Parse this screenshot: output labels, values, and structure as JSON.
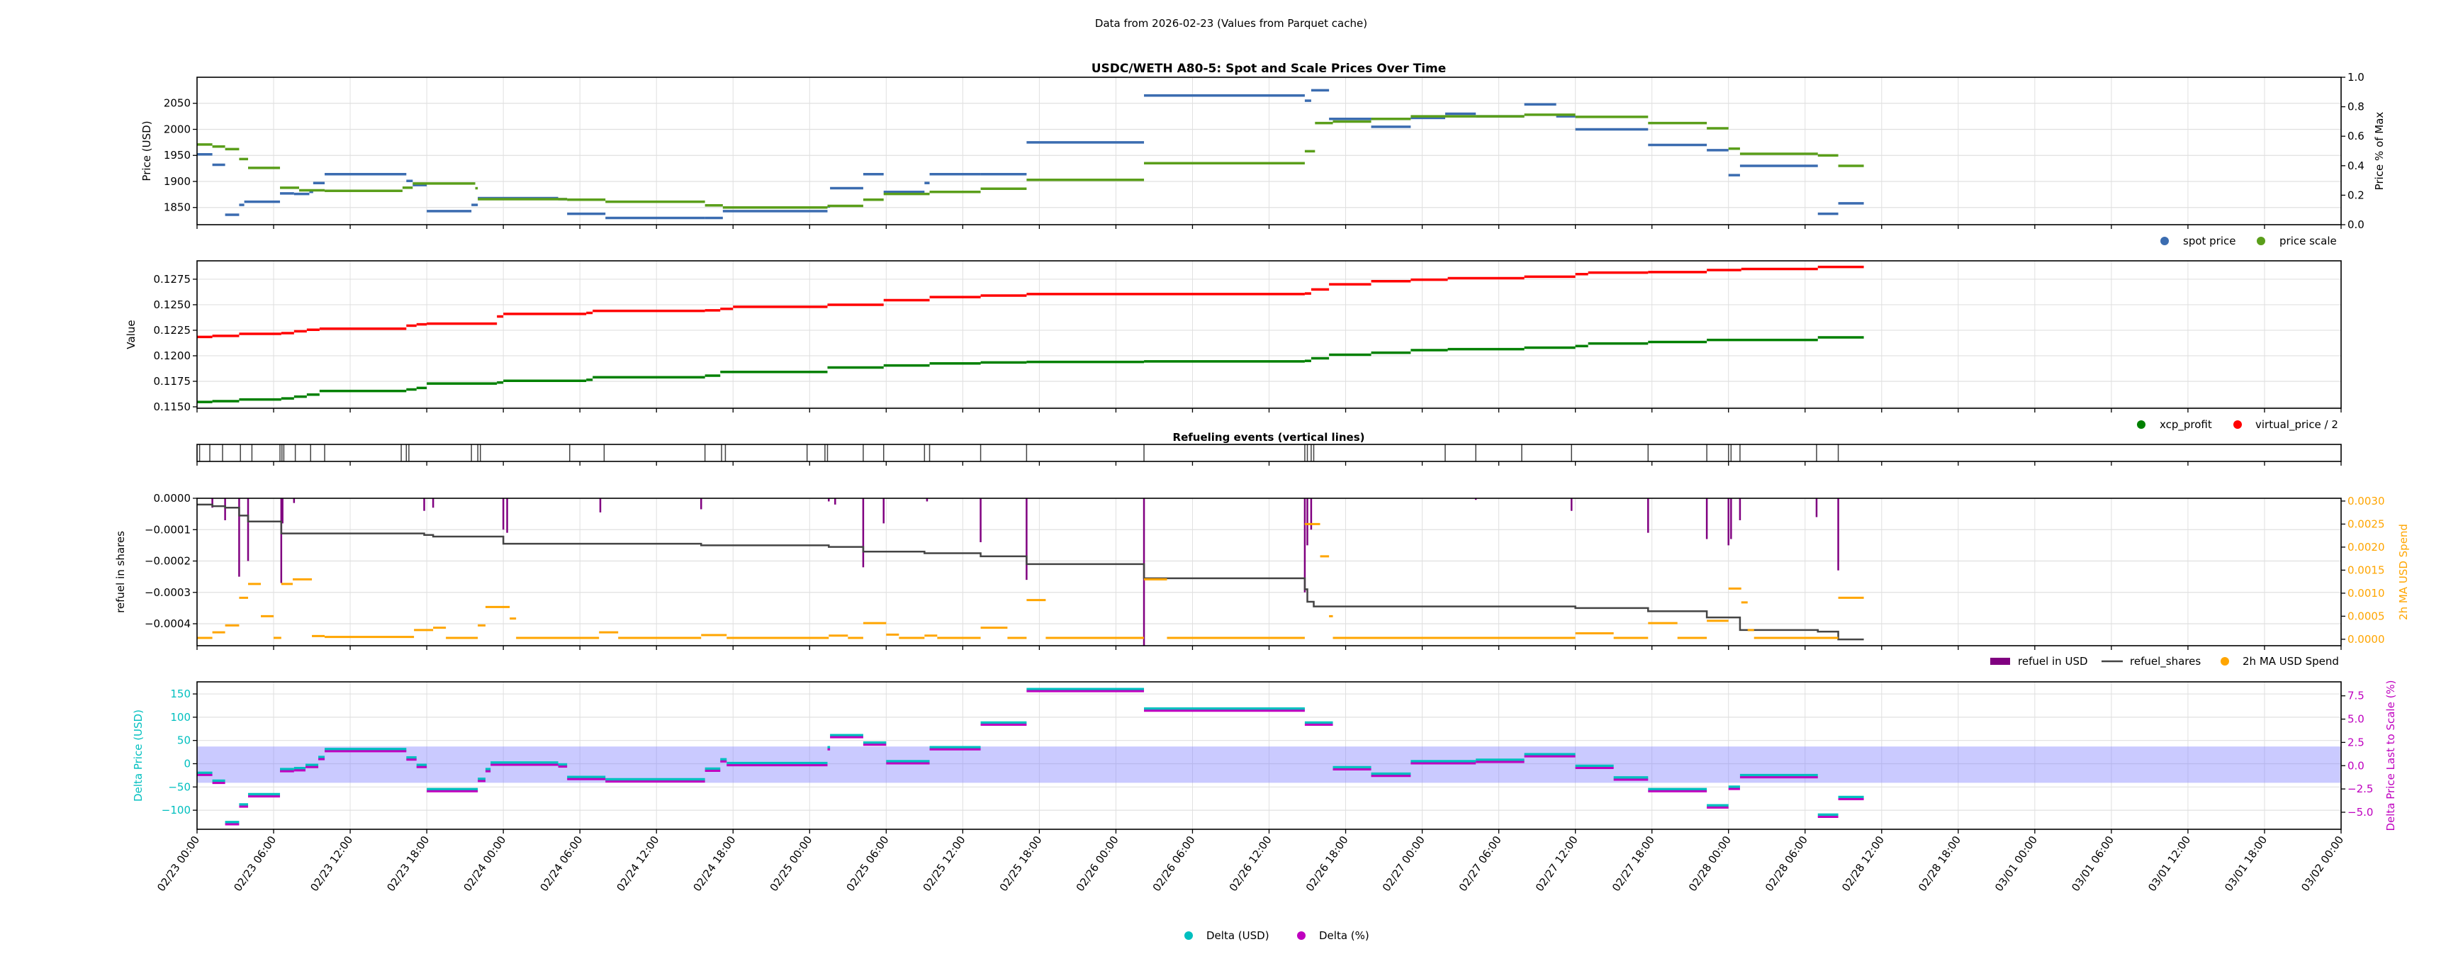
{
  "suptitle": "Data from 2026-02-23 (Values from Parquet cache)",
  "x_axis": {
    "unit": "hours since 02/23 00:00",
    "range_hours": [
      0,
      168
    ],
    "tick_hours": [
      0,
      6,
      12,
      18,
      24,
      30,
      36,
      42,
      48,
      54,
      60,
      66,
      72,
      78,
      84,
      90,
      96,
      102,
      108,
      114,
      120,
      126,
      132,
      138,
      144,
      150,
      156,
      162,
      168
    ],
    "tick_labels": [
      "02/23 00:00",
      "02/23 06:00",
      "02/23 12:00",
      "02/23 18:00",
      "02/24 00:00",
      "02/24 06:00",
      "02/24 12:00",
      "02/24 18:00",
      "02/25 00:00",
      "02/25 06:00",
      "02/25 12:00",
      "02/25 18:00",
      "02/26 00:00",
      "02/26 06:00",
      "02/26 12:00",
      "02/26 18:00",
      "02/27 00:00",
      "02/27 06:00",
      "02/27 12:00",
      "02/27 18:00",
      "02/28 00:00",
      "02/28 06:00",
      "02/28 12:00",
      "02/28 18:00",
      "03/01 00:00",
      "03/01 06:00",
      "03/01 12:00",
      "03/01 18:00",
      "03/02 00:00"
    ]
  },
  "chart_data": [
    {
      "type": "line",
      "title": "USDC/WETH A80-5: Spot and Scale Prices Over Time",
      "ylabel": "Price (USD)",
      "ylabel_right": "Price % of Max",
      "ylim": [
        1817,
        2100
      ],
      "ylim_right": [
        0,
        1
      ],
      "yticks": [
        {
          "v": 1850,
          "label": "1850"
        },
        {
          "v": 1900,
          "label": "1900"
        },
        {
          "v": 1950,
          "label": "1950"
        },
        {
          "v": 2000,
          "label": "2000"
        },
        {
          "v": 2050,
          "label": "2050"
        }
      ],
      "yticks_right": [
        {
          "v": 0,
          "label": "0.0"
        },
        {
          "v": 0.2,
          "label": "0.2"
        },
        {
          "v": 0.4,
          "label": "0.4"
        },
        {
          "v": 0.6,
          "label": "0.6"
        },
        {
          "v": 0.8,
          "label": "0.8"
        },
        {
          "v": 1.0,
          "label": "1.0"
        }
      ],
      "legend": [
        {
          "label": "spot price",
          "color": "#3b6cb0"
        },
        {
          "label": "price scale",
          "color": "#5a9e1a"
        }
      ],
      "series": [
        {
          "name": "spot price",
          "color": "#3b6cb0",
          "end_hour": 130.6,
          "x": [
            0,
            1.2,
            2.2,
            3.3,
            3.7,
            6.5,
            7.6,
            8.8,
            9.1,
            10,
            16.4,
            16.9,
            18,
            21.5,
            22,
            28.3,
            29,
            32,
            39.8,
            41.2,
            49.4,
            49.6,
            52.2,
            53.8,
            57,
            57.4,
            61.4,
            65,
            74.2,
            86.8,
            87.3,
            88.7,
            92,
            95.1,
            97.8,
            100.2,
            104,
            106.5,
            108,
            113.7,
            118.3,
            120,
            120.9,
            127,
            128.6
          ],
          "y": [
            1952,
            1932,
            1836,
            1855,
            1861,
            1877,
            1876,
            1880,
            1897,
            1914,
            1901,
            1893,
            1843,
            1855,
            1868,
            1866,
            1838,
            1830,
            1830,
            1843,
            1852,
            1887,
            1914,
            1880,
            1897,
            1914,
            1914,
            1975,
            2065,
            2055,
            2075,
            2020,
            2005,
            2022,
            2030,
            2025,
            2048,
            2025,
            2000,
            1970,
            1960,
            1912,
            1930,
            1838,
            1858
          ]
        },
        {
          "name": "price scale",
          "color": "#5a9e1a",
          "end_hour": 130.6,
          "x": [
            0,
            1.2,
            2.2,
            3.3,
            4,
            6.5,
            8,
            10,
            16.1,
            16.9,
            21.8,
            22,
            29,
            32,
            39.8,
            41.2,
            49.4,
            52.2,
            53.8,
            57.4,
            61.4,
            65,
            74.2,
            86.8,
            87.6,
            89,
            92,
            95.1,
            100.2,
            104,
            108,
            113.7,
            118.3,
            120,
            120.9,
            127,
            128.6
          ],
          "y": [
            1971,
            1967,
            1962,
            1943,
            1926,
            1888,
            1883,
            1882,
            1888,
            1896,
            1887,
            1866,
            1865,
            1861,
            1854,
            1850,
            1853,
            1865,
            1876,
            1880,
            1886,
            1903,
            1935,
            1958,
            2012,
            2015,
            2020,
            2025,
            2025,
            2028,
            2024,
            2012,
            2002,
            1963,
            1953,
            1950,
            1930
          ]
        }
      ]
    },
    {
      "type": "line",
      "title": "",
      "ylabel": "Value",
      "ylim": [
        0.11486,
        0.1293
      ],
      "yticks": [
        {
          "v": 0.115,
          "label": "0.1150"
        },
        {
          "v": 0.1175,
          "label": "0.1175"
        },
        {
          "v": 0.12,
          "label": "0.1200"
        },
        {
          "v": 0.1225,
          "label": "0.1225"
        },
        {
          "v": 0.125,
          "label": "0.1250"
        },
        {
          "v": 0.1275,
          "label": "0.1275"
        }
      ],
      "legend": [
        {
          "label": "xcp_profit",
          "color": "#008000"
        },
        {
          "label": "virtual_price / 2",
          "color": "#ff0000"
        }
      ],
      "series": [
        {
          "name": "xcp_profit",
          "color": "#008000",
          "end_hour": 130.6,
          "x": [
            0,
            1.2,
            3.3,
            6.6,
            7.6,
            8.6,
            9.6,
            16.4,
            17.2,
            18,
            23.5,
            24,
            30.5,
            31,
            39.8,
            41,
            49.4,
            53.8,
            57.4,
            61.4,
            65,
            74.2,
            86.8,
            87.3,
            88.7,
            92,
            95.1,
            98,
            104,
            108,
            109,
            113.7,
            118.3,
            127
          ],
          "y": [
            0.11548,
            0.11555,
            0.11572,
            0.11582,
            0.116,
            0.1162,
            0.11655,
            0.1167,
            0.11685,
            0.11728,
            0.11738,
            0.11755,
            0.11765,
            0.1179,
            0.11805,
            0.11842,
            0.11885,
            0.11905,
            0.11925,
            0.11935,
            0.1194,
            0.11945,
            0.1195,
            0.11975,
            0.1201,
            0.1203,
            0.12055,
            0.12065,
            0.1208,
            0.12095,
            0.1212,
            0.12135,
            0.12155,
            0.1218
          ]
        },
        {
          "name": "virtual_price / 2",
          "color": "#ff0000",
          "end_hour": 130.6,
          "x": [
            0,
            1.2,
            3.3,
            6.6,
            7.6,
            8.6,
            9.6,
            16.4,
            17.2,
            18,
            23.5,
            24,
            30.5,
            31,
            39.8,
            41,
            42,
            49.4,
            53.8,
            57.4,
            61.4,
            65,
            86.8,
            87.3,
            88.7,
            92,
            95.1,
            98,
            104,
            108,
            109,
            113.7,
            118.3,
            121,
            127
          ],
          "y": [
            0.12185,
            0.12195,
            0.12215,
            0.12222,
            0.1224,
            0.12255,
            0.12265,
            0.12295,
            0.12308,
            0.12315,
            0.12385,
            0.1241,
            0.1242,
            0.1244,
            0.12445,
            0.1246,
            0.1248,
            0.125,
            0.12545,
            0.12575,
            0.1259,
            0.12605,
            0.1261,
            0.1265,
            0.127,
            0.1273,
            0.12745,
            0.1276,
            0.12775,
            0.128,
            0.12815,
            0.1282,
            0.1284,
            0.1285,
            0.1287
          ]
        }
      ]
    },
    {
      "type": "line",
      "title": "Refueling events (vertical lines)",
      "event_hours": [
        0.2,
        1,
        2,
        3.4,
        4.3,
        6.5,
        6.65,
        6.8,
        7.7,
        8.9,
        10,
        16,
        16.4,
        16.6,
        21.5,
        22,
        22.2,
        29.2,
        31.9,
        39.8,
        41.1,
        41.4,
        47.8,
        49.2,
        49.4,
        52.2,
        53.8,
        57,
        57.4,
        61.4,
        65,
        74.2,
        86.8,
        87,
        87.3,
        87.5,
        97.8,
        100.2,
        103.8,
        107.7,
        113.7,
        118.3,
        120,
        120.2,
        120.9,
        126.9,
        128.6
      ]
    },
    {
      "type": "bar",
      "title": "",
      "ylabel": "refuel in shares",
      "ylabel_right": "2h MA USD Spend",
      "ylim": [
        -0.00047,
        0.0
      ],
      "ylim_right": [
        -0.00014,
        0.00306
      ],
      "yticks": [
        {
          "v": -0.0004,
          "label": "−0.0004"
        },
        {
          "v": -0.0003,
          "label": "−0.0003"
        },
        {
          "v": -0.0002,
          "label": "−0.0002"
        },
        {
          "v": -0.0001,
          "label": "−0.0001"
        },
        {
          "v": 0.0,
          "label": "0.0000"
        }
      ],
      "yticks_right": [
        {
          "v": 0.0,
          "label": "0.0000"
        },
        {
          "v": 0.0005,
          "label": "0.0005"
        },
        {
          "v": 0.001,
          "label": "0.0010"
        },
        {
          "v": 0.0015,
          "label": "0.0015"
        },
        {
          "v": 0.002,
          "label": "0.0020"
        },
        {
          "v": 0.0025,
          "label": "0.0025"
        },
        {
          "v": 0.003,
          "label": "0.0030"
        }
      ],
      "legend": [
        {
          "label": "refuel in USD",
          "color": "#800080"
        },
        {
          "label": "refuel_shares",
          "color": "#444444"
        },
        {
          "label": "2h MA USD Spend",
          "color": "#ffa500"
        }
      ],
      "refuel_bars": {
        "name": "refuel in USD",
        "color": "#800080",
        "x": [
          1.2,
          2.2,
          3.3,
          4,
          6.6,
          6.7,
          7.6,
          17.8,
          18.5,
          24,
          24.3,
          31.6,
          39.5,
          49.5,
          50,
          52.2,
          53.8,
          57.2,
          61.4,
          65,
          74.2,
          86.8,
          87,
          87.3,
          100.2,
          107.7,
          113.7,
          118.3,
          120,
          120.2,
          120.9,
          126.9,
          128.6
        ],
        "y": [
          -3e-05,
          -7e-05,
          -0.00025,
          -0.0002,
          -0.00027,
          -8e-05,
          -1.5e-05,
          -4e-05,
          -3e-05,
          -0.0001,
          -0.00011,
          -4.5e-05,
          -3.5e-05,
          -1e-05,
          -2e-05,
          -0.00022,
          -8e-05,
          -1e-05,
          -0.00014,
          -0.00026,
          -0.00047,
          -0.0003,
          -0.00015,
          -0.0001,
          -5e-06,
          -4e-05,
          -0.00011,
          -0.00013,
          -0.00015,
          -0.00013,
          -7e-05,
          -6e-05,
          -0.00023
        ]
      },
      "refuel_shares": {
        "name": "refuel_shares",
        "color": "#444444",
        "end_hour": 130.6,
        "x": [
          0,
          1.2,
          2.2,
          3.3,
          4,
          6.6,
          17.8,
          18.5,
          24,
          39.5,
          49.5,
          52.2,
          57,
          61.4,
          65,
          74.2,
          86.8,
          87,
          87.5,
          108,
          113.7,
          118.3,
          120.9,
          127,
          128.6
        ],
        "y": [
          -2e-05,
          -2.5e-05,
          -3e-05,
          -5.5e-05,
          -7.4e-05,
          -0.000112,
          -0.000117,
          -0.000122,
          -0.000145,
          -0.00015,
          -0.000155,
          -0.00017,
          -0.000175,
          -0.000185,
          -0.00021,
          -0.000255,
          -0.00029,
          -0.00033,
          -0.000345,
          -0.00035,
          -0.00036,
          -0.00038,
          -0.00042,
          -0.000425,
          -0.00045
        ]
      },
      "ma_spend": {
        "name": "2h MA USD Spend",
        "color": "#ffa500",
        "end_hour": 130.6,
        "x": [
          0,
          1.2,
          2.2,
          3.3,
          4,
          5,
          6,
          6.6,
          7.5,
          9,
          10,
          17,
          18.5,
          19.5,
          22,
          22.6,
          24.5,
          25,
          31.5,
          33,
          39.5,
          41.5,
          49.5,
          51,
          52.2,
          54,
          55,
          57,
          58,
          61.4,
          63.5,
          65,
          66.5,
          74.2,
          76,
          86.8,
          88,
          88.7,
          89,
          108,
          111,
          113.7,
          116,
          118.3,
          120,
          121,
          121.5,
          122,
          128.6
        ],
        "y": [
          3e-05,
          0.00015,
          0.0003,
          0.0009,
          0.0012,
          0.0005,
          3e-05,
          0.0012,
          0.0013,
          7e-05,
          5e-05,
          0.0002,
          0.00025,
          3e-05,
          0.0003,
          0.0007,
          0.00045,
          3e-05,
          0.00015,
          3e-05,
          9e-05,
          3e-05,
          8e-05,
          3e-05,
          0.00035,
          0.0001,
          3e-05,
          8e-05,
          3e-05,
          0.00025,
          3e-05,
          0.00085,
          3e-05,
          0.0013,
          3e-05,
          0.0025,
          0.0018,
          0.0005,
          3e-05,
          0.00013,
          3e-05,
          0.00035,
          3e-05,
          0.0004,
          0.0011,
          0.0008,
          0.0002,
          3e-05,
          0.0009
        ]
      }
    },
    {
      "type": "line",
      "title": "",
      "ylabel": "Delta Price (USD)",
      "ylabel_right": "Delta Price Last to Scale (%)",
      "ylim": [
        -141,
        176
      ],
      "ylim_right": [
        -6.83,
        9.0
      ],
      "band_usd": [
        -41,
        37
      ],
      "band_color": "#8080ff",
      "yticks": [
        {
          "v": -100,
          "label": "−100"
        },
        {
          "v": -50,
          "label": "−50"
        },
        {
          "v": 0,
          "label": "0"
        },
        {
          "v": 50,
          "label": "50"
        },
        {
          "v": 100,
          "label": "100"
        },
        {
          "v": 150,
          "label": "150"
        }
      ],
      "yticks_right": [
        {
          "v": -5,
          "label": "−5.0"
        },
        {
          "v": -2.5,
          "label": "−2.5"
        },
        {
          "v": 0,
          "label": "0.0"
        },
        {
          "v": 2.5,
          "label": "2.5"
        },
        {
          "v": 5,
          "label": "5.0"
        },
        {
          "v": 7.5,
          "label": "7.5"
        }
      ],
      "legend": [
        {
          "label": "Delta (USD)",
          "color": "#00bfbf"
        },
        {
          "label": "Delta (%)",
          "color": "#bf00bf"
        }
      ],
      "x": [
        0,
        1.2,
        2.2,
        3.3,
        4,
        6.5,
        7.6,
        8.5,
        9.5,
        10,
        16.4,
        17.2,
        18,
        22,
        22.6,
        23,
        28.3,
        29,
        32,
        39.8,
        41,
        41.5,
        49.4,
        49.6,
        52.2,
        54,
        57.4,
        61.4,
        65,
        74.2,
        86.8,
        89,
        92,
        95.1,
        100.2,
        104,
        108,
        111,
        113.7,
        118.3,
        120,
        120.9,
        127,
        128.6
      ],
      "end_hour": 130.6,
      "series": [
        {
          "name": "Delta (USD)",
          "color": "#00bfbf",
          "y": [
            -20,
            -37,
            -126,
            -88,
            -66,
            -12,
            -10,
            -3,
            14,
            31,
            13,
            -3,
            -55,
            -33,
            -12,
            2,
            -2,
            -29,
            -34,
            -11,
            9,
            1,
            35,
            61,
            45,
            5,
            35,
            88,
            160,
            118,
            88,
            -8,
            -22,
            5,
            8,
            20,
            -5,
            -30,
            -55,
            -90,
            -50,
            -25,
            -110,
            -72
          ]
        },
        {
          "name": "Delta (%)",
          "color": "#bf00bf",
          "y": [
            -1.0,
            -1.85,
            -6.3,
            -4.4,
            -3.3,
            -0.6,
            -0.5,
            -0.15,
            0.7,
            1.55,
            0.65,
            -0.15,
            -2.75,
            -1.65,
            -0.6,
            0.1,
            -0.1,
            -1.45,
            -1.7,
            -0.55,
            0.45,
            0.05,
            1.75,
            3.05,
            2.25,
            0.25,
            1.75,
            4.4,
            8.0,
            5.9,
            4.4,
            -0.4,
            -1.1,
            0.25,
            0.4,
            1.0,
            -0.25,
            -1.5,
            -2.75,
            -4.5,
            -2.5,
            -1.25,
            -5.5,
            -3.6
          ]
        }
      ]
    }
  ]
}
